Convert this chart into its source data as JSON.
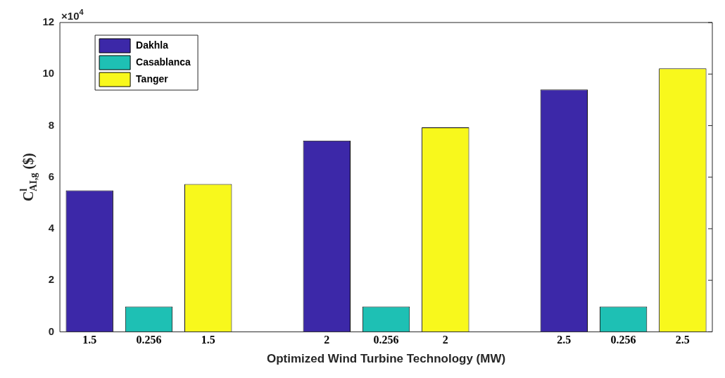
{
  "chart_data": {
    "type": "bar",
    "xlabel": "Optimized Wind Turbine Technology (MW)",
    "ylabel": "C$^{l}$$_{AI,g}$ ($)",
    "categories": [
      "1.5",
      "0.256",
      "1.5",
      null,
      "2",
      "0.256",
      "2",
      null,
      "2.5",
      "0.256",
      "2.5"
    ],
    "stacked": true,
    "series": [
      {
        "name": "Dakhla",
        "color": "#3c28a8",
        "values": [
          5.49,
          null,
          null,
          null,
          7.42,
          null,
          null,
          null,
          9.4,
          null,
          null
        ]
      },
      {
        "name": "Casablanca",
        "color": "#1ec0b4",
        "values": [
          null,
          0.98,
          null,
          null,
          null,
          0.98,
          null,
          null,
          null,
          0.98,
          null
        ]
      },
      {
        "name": "Tanger",
        "color": "#f8f81c",
        "values": [
          null,
          null,
          5.73,
          null,
          null,
          null,
          7.93,
          null,
          null,
          null,
          10.22
        ]
      }
    ],
    "ylim": [
      0,
      12
    ],
    "yticks": [
      0,
      2,
      4,
      6,
      8,
      10,
      12
    ],
    "annotations": [
      "×10$^{4}$"
    ],
    "legend": "top left",
    "grid": false
  }
}
